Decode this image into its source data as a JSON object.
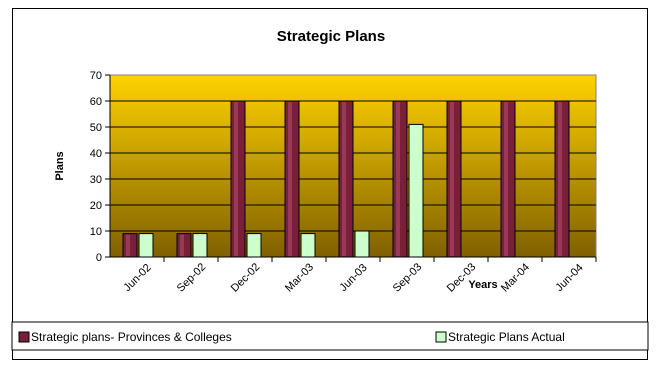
{
  "chart_data": {
    "type": "bar",
    "title": "Strategic Plans",
    "xlabel": "Years",
    "ylabel": "Plans",
    "categories": [
      "Jun-02",
      "Sep-02",
      "Dec-02",
      "Mar-03",
      "Jun-03",
      "Sep-03",
      "Dec-03",
      "Mar-04",
      "Jun-04"
    ],
    "ylim": [
      0,
      70
    ],
    "yticks": [
      0,
      10,
      20,
      30,
      40,
      50,
      60,
      70
    ],
    "grid": true,
    "legend_position": "bottom",
    "plot_background": [
      "#ffd200",
      "#806000"
    ],
    "series": [
      {
        "name": "Strategic plans- Provinces & Colleges",
        "color": "#7a1f3a",
        "values": [
          9,
          9,
          60,
          60,
          60,
          60,
          60,
          60,
          60
        ]
      },
      {
        "name": "Strategic Plans Actual",
        "color": "#ccffcc",
        "values": [
          9,
          9,
          9,
          9,
          10,
          51,
          null,
          null,
          null
        ]
      }
    ]
  }
}
